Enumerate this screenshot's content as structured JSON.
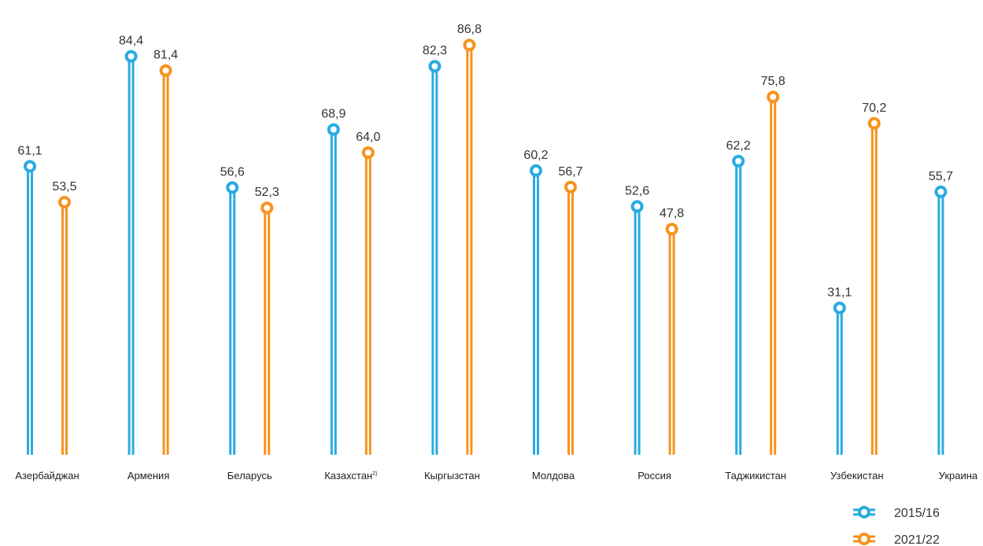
{
  "chart_data": {
    "type": "bar",
    "categories": [
      "Азербайджан",
      "Армения",
      "Беларусь",
      "Казахстан",
      "Кыргызстан",
      "Молдова",
      "Россия",
      "Таджикистан",
      "Узбекистан",
      "Украина"
    ],
    "category_notes": {
      "Казахстан": "2)"
    },
    "series": [
      {
        "name": "2015/16",
        "color": "#29abe2",
        "values": [
          61.1,
          84.4,
          56.6,
          68.9,
          82.3,
          60.2,
          52.6,
          62.2,
          31.1,
          55.7
        ],
        "labels": [
          "61,1",
          "84,4",
          "56,6",
          "68,9",
          "82,3",
          "60,2",
          "52,6",
          "62,2",
          "31,1",
          "55,7"
        ]
      },
      {
        "name": "2021/22",
        "color": "#f7931e",
        "values": [
          53.5,
          81.4,
          52.3,
          64.0,
          86.8,
          56.7,
          47.8,
          75.8,
          70.2,
          null
        ],
        "labels": [
          "53,5",
          "81,4",
          "52,3",
          "64,0",
          "86,8",
          "56,7",
          "47,8",
          "75,8",
          "70,2",
          ""
        ]
      }
    ],
    "legend_position": "bottom-right",
    "grid": false
  }
}
